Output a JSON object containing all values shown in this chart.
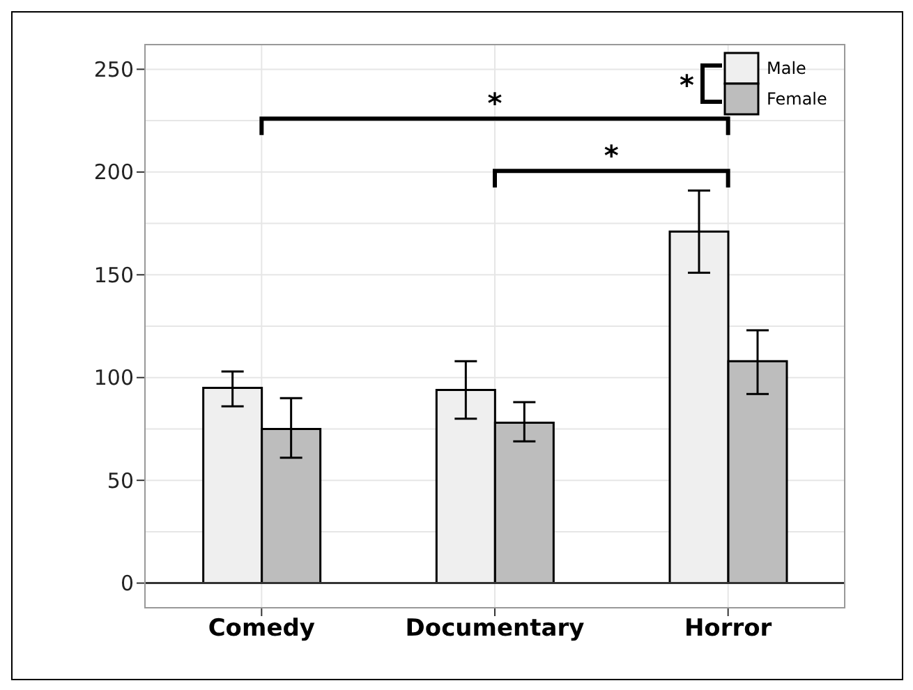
{
  "chart_data": {
    "type": "bar",
    "categories": [
      "Comedy",
      "Documentary",
      "Horror"
    ],
    "series": [
      {
        "name": "Male",
        "color": "#efefef",
        "values": [
          95,
          94,
          171
        ],
        "errors": [
          [
            86,
            103
          ],
          [
            80,
            108
          ],
          [
            151,
            191
          ]
        ]
      },
      {
        "name": "Female",
        "color": "#bdbdbd",
        "values": [
          75,
          78,
          108
        ],
        "errors": [
          [
            61,
            90
          ],
          [
            69,
            88
          ],
          [
            92,
            123
          ]
        ]
      }
    ],
    "ylim": [
      -12,
      262
    ],
    "yticks": [
      0,
      50,
      100,
      150,
      200,
      250
    ],
    "grid": true,
    "legend": "top right",
    "ref_lines": [
      {
        "axis": "y",
        "value": 0,
        "color": "#333333"
      }
    ],
    "annotations": [
      "*",
      "*",
      "*"
    ]
  }
}
